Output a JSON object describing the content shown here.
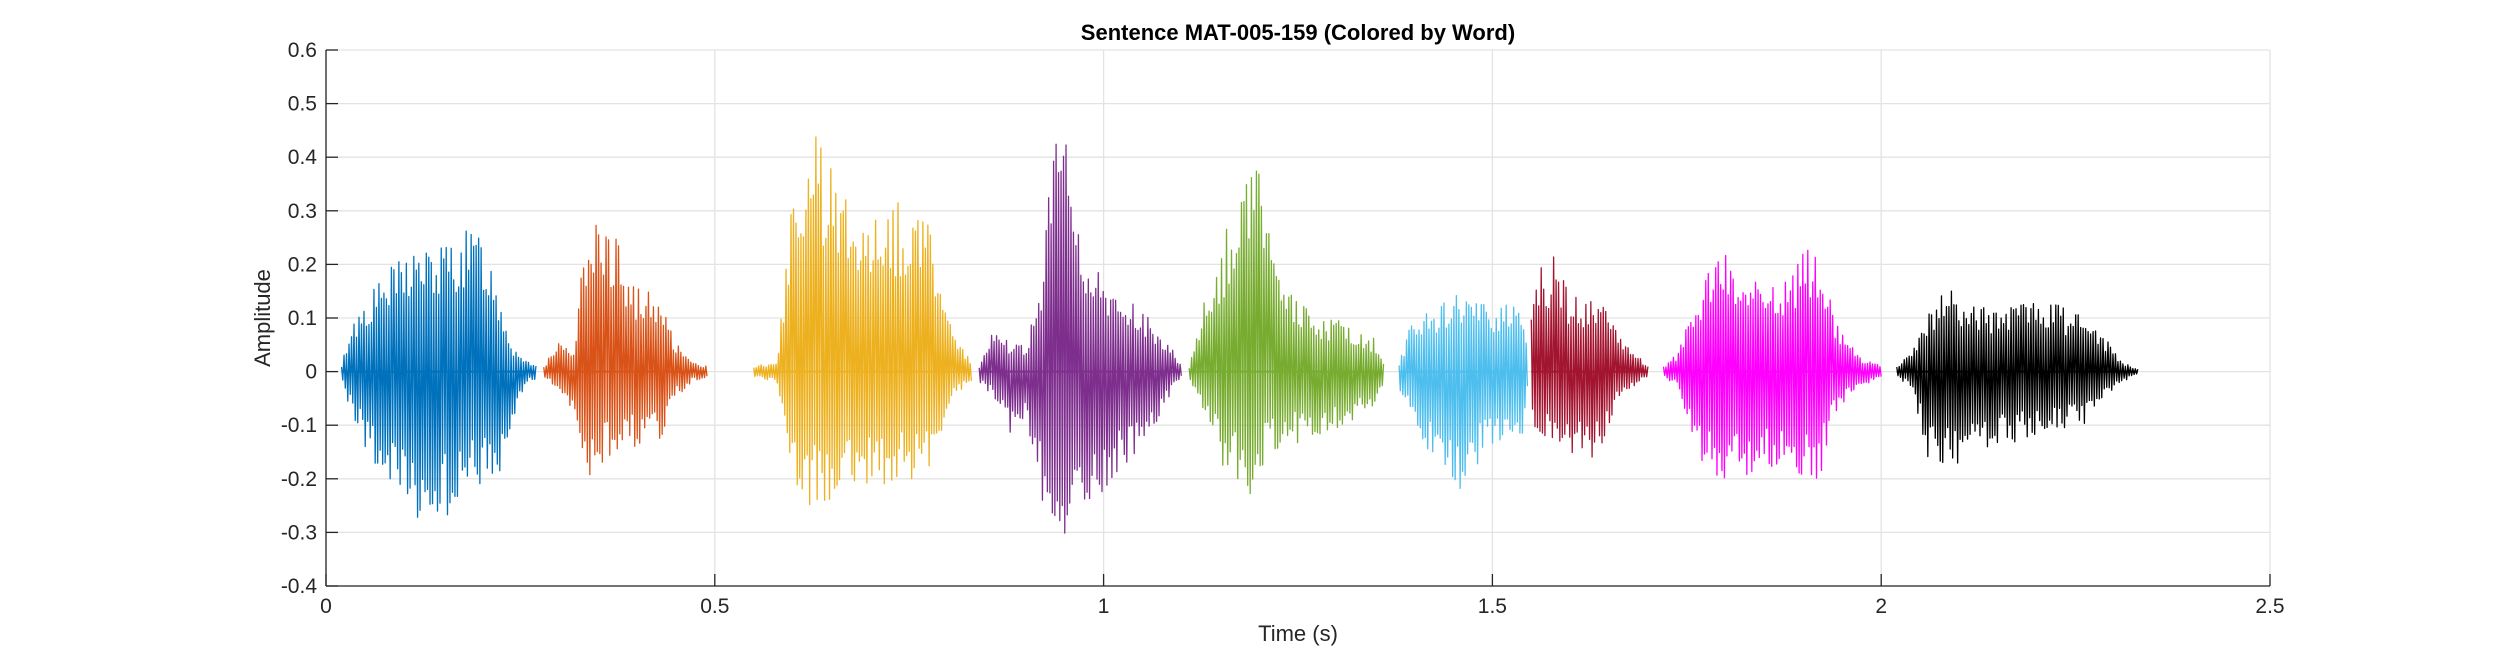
{
  "chart_data": {
    "type": "line",
    "title": "Sentence MAT-005-159 (Colored by Word)",
    "xlabel": "Time (s)",
    "ylabel": "Amplitude",
    "xlim": [
      0,
      2.5
    ],
    "ylim": [
      -0.4,
      0.6
    ],
    "xticks": [
      0,
      0.5,
      1,
      1.5,
      2,
      2.5
    ],
    "xtick_labels": [
      "0",
      "0.5",
      "1",
      "1.5",
      "2",
      "2.5"
    ],
    "yticks": [
      -0.4,
      -0.3,
      -0.2,
      -0.1,
      0,
      0.1,
      0.2,
      0.3,
      0.4,
      0.5,
      0.6
    ],
    "ytick_labels": [
      "-0.4",
      "-0.3",
      "-0.2",
      "-0.1",
      "0",
      "0.1",
      "0.2",
      "0.3",
      "0.4",
      "0.5",
      "0.6"
    ],
    "grid": true,
    "series": [
      {
        "color": "#0072BD",
        "envelope": [
          [
            0.02,
            0.01,
            -0.01
          ],
          [
            0.03,
            0.08,
            -0.07
          ],
          [
            0.05,
            0.14,
            -0.14
          ],
          [
            0.08,
            0.19,
            -0.23
          ],
          [
            0.11,
            0.24,
            -0.28
          ],
          [
            0.14,
            0.23,
            -0.29
          ],
          [
            0.17,
            0.26,
            -0.26
          ],
          [
            0.2,
            0.27,
            -0.21
          ],
          [
            0.22,
            0.17,
            -0.25
          ],
          [
            0.24,
            0.05,
            -0.1
          ],
          [
            0.26,
            0.02,
            -0.02
          ],
          [
            0.27,
            0.015,
            -0.015
          ]
        ]
      },
      {
        "color": "#D95319",
        "envelope": [
          [
            0.28,
            0.01,
            -0.01
          ],
          [
            0.3,
            0.06,
            -0.04
          ],
          [
            0.32,
            0.05,
            -0.08
          ],
          [
            0.335,
            0.29,
            -0.2
          ],
          [
            0.35,
            0.35,
            -0.18
          ],
          [
            0.37,
            0.26,
            -0.16
          ],
          [
            0.4,
            0.17,
            -0.14
          ],
          [
            0.43,
            0.13,
            -0.13
          ],
          [
            0.45,
            0.06,
            -0.05
          ],
          [
            0.47,
            0.02,
            -0.02
          ],
          [
            0.49,
            0.01,
            -0.01
          ]
        ]
      },
      {
        "color": "#EDB120",
        "envelope": [
          [
            0.55,
            0.01,
            -0.01
          ],
          [
            0.58,
            0.02,
            -0.02
          ],
          [
            0.6,
            0.33,
            -0.22
          ],
          [
            0.62,
            0.47,
            -0.25
          ],
          [
            0.65,
            0.38,
            -0.24
          ],
          [
            0.68,
            0.33,
            -0.22
          ],
          [
            0.72,
            0.32,
            -0.21
          ],
          [
            0.75,
            0.32,
            -0.2
          ],
          [
            0.77,
            0.32,
            -0.2
          ],
          [
            0.79,
            0.2,
            -0.13
          ],
          [
            0.81,
            0.06,
            -0.04
          ],
          [
            0.83,
            0.02,
            -0.02
          ]
        ]
      },
      {
        "color": "#7E2F8E",
        "envelope": [
          [
            0.84,
            0.01,
            -0.02
          ],
          [
            0.86,
            0.1,
            -0.05
          ],
          [
            0.88,
            0.05,
            -0.12
          ],
          [
            0.9,
            0.05,
            -0.08
          ],
          [
            0.92,
            0.16,
            -0.25
          ],
          [
            0.94,
            0.53,
            -0.36
          ],
          [
            0.96,
            0.35,
            -0.3
          ],
          [
            0.98,
            0.24,
            -0.26
          ],
          [
            1.0,
            0.16,
            -0.22
          ],
          [
            1.03,
            0.14,
            -0.17
          ],
          [
            1.06,
            0.1,
            -0.12
          ],
          [
            1.09,
            0.04,
            -0.03
          ],
          [
            1.1,
            0.01,
            -0.01
          ]
        ]
      },
      {
        "color": "#77AC30",
        "envelope": [
          [
            1.11,
            0.01,
            -0.01
          ],
          [
            1.13,
            0.15,
            -0.08
          ],
          [
            1.15,
            0.21,
            -0.17
          ],
          [
            1.17,
            0.35,
            -0.2
          ],
          [
            1.19,
            0.41,
            -0.23
          ],
          [
            1.21,
            0.38,
            -0.16
          ],
          [
            1.23,
            0.16,
            -0.14
          ],
          [
            1.26,
            0.12,
            -0.13
          ],
          [
            1.29,
            0.1,
            -0.11
          ],
          [
            1.32,
            0.09,
            -0.1
          ],
          [
            1.35,
            0.06,
            -0.06
          ],
          [
            1.36,
            0.02,
            -0.02
          ]
        ]
      },
      {
        "color": "#4DBEEE",
        "envelope": [
          [
            1.38,
            0.02,
            -0.03
          ],
          [
            1.4,
            0.11,
            -0.1
          ],
          [
            1.42,
            0.13,
            -0.16
          ],
          [
            1.44,
            0.13,
            -0.2
          ],
          [
            1.46,
            0.15,
            -0.22
          ],
          [
            1.48,
            0.13,
            -0.18
          ],
          [
            1.5,
            0.12,
            -0.14
          ],
          [
            1.52,
            0.14,
            -0.13
          ],
          [
            1.54,
            0.14,
            -0.13
          ],
          [
            1.545,
            0.03,
            -0.03
          ]
        ]
      },
      {
        "color": "#A2142F",
        "envelope": [
          [
            1.55,
            0.1,
            -0.12
          ],
          [
            1.56,
            0.2,
            -0.12
          ],
          [
            1.58,
            0.22,
            -0.14
          ],
          [
            1.6,
            0.15,
            -0.15
          ],
          [
            1.62,
            0.14,
            -0.16
          ],
          [
            1.64,
            0.13,
            -0.16
          ],
          [
            1.66,
            0.09,
            -0.06
          ],
          [
            1.68,
            0.04,
            -0.03
          ],
          [
            1.7,
            0.01,
            -0.01
          ]
        ]
      },
      {
        "color": "#FF00FF",
        "envelope": [
          [
            1.72,
            0.01,
            -0.01
          ],
          [
            1.74,
            0.04,
            -0.03
          ],
          [
            1.76,
            0.14,
            -0.15
          ],
          [
            1.78,
            0.21,
            -0.19
          ],
          [
            1.8,
            0.23,
            -0.2
          ],
          [
            1.82,
            0.2,
            -0.2
          ],
          [
            1.85,
            0.16,
            -0.19
          ],
          [
            1.88,
            0.19,
            -0.18
          ],
          [
            1.9,
            0.24,
            -0.2
          ],
          [
            1.92,
            0.23,
            -0.21
          ],
          [
            1.94,
            0.1,
            -0.08
          ],
          [
            1.97,
            0.03,
            -0.03
          ],
          [
            2.0,
            0.01,
            -0.01
          ]
        ]
      },
      {
        "color": "#000000",
        "envelope": [
          [
            2.02,
            0.01,
            -0.01
          ],
          [
            2.04,
            0.04,
            -0.03
          ],
          [
            2.06,
            0.11,
            -0.17
          ],
          [
            2.08,
            0.17,
            -0.19
          ],
          [
            2.11,
            0.13,
            -0.16
          ],
          [
            2.14,
            0.12,
            -0.14
          ],
          [
            2.18,
            0.13,
            -0.13
          ],
          [
            2.22,
            0.13,
            -0.11
          ],
          [
            2.26,
            0.11,
            -0.1
          ],
          [
            2.29,
            0.06,
            -0.05
          ],
          [
            2.31,
            0.02,
            -0.02
          ],
          [
            2.33,
            0.005,
            -0.005
          ]
        ]
      }
    ]
  }
}
